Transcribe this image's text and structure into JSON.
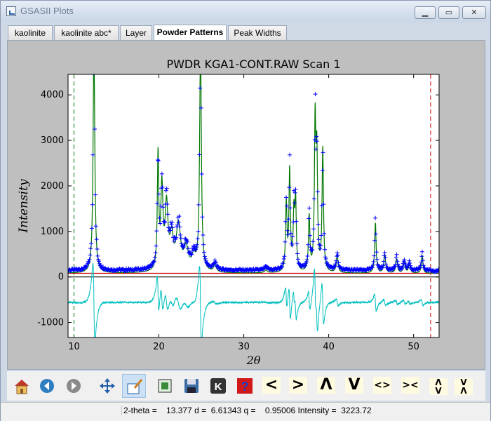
{
  "window": {
    "title": "GSASII Plots"
  },
  "tabs": [
    {
      "label": "kaolinite"
    },
    {
      "label": "kaolinite abc*"
    },
    {
      "label": "Layer"
    },
    {
      "label": "Powder Patterns"
    },
    {
      "label": "Peak Widths"
    }
  ],
  "colors": {
    "observed": "#0000ff",
    "calculated": "#007700",
    "difference": "#00bfbf",
    "background": "#cc0000",
    "limit_left": "#007700",
    "limit_right": "#cc0000"
  },
  "chart_data": {
    "type": "line",
    "title": "PWDR KGA1-CONT.RAW Scan 1",
    "xlabel": "2θ",
    "ylabel": "Intensity",
    "xlim": [
      9.3,
      53
    ],
    "ylim": [
      -1330,
      4450
    ],
    "xticks": [
      10,
      20,
      30,
      40,
      50
    ],
    "yticks": [
      -1000,
      0,
      1000,
      2000,
      3000,
      4000
    ],
    "limits": [
      10,
      52
    ],
    "background_level": 80,
    "difference_offset": -560,
    "peaks": [
      {
        "x": 12.35,
        "h": 5000,
        "w": 0.12
      },
      {
        "x": 19.9,
        "h": 2500,
        "w": 0.1
      },
      {
        "x": 20.35,
        "h": 1800,
        "w": 0.15
      },
      {
        "x": 20.9,
        "h": 1400,
        "w": 0.2
      },
      {
        "x": 21.5,
        "h": 700,
        "w": 0.25
      },
      {
        "x": 22.3,
        "h": 1000,
        "w": 0.3
      },
      {
        "x": 23.2,
        "h": 500,
        "w": 0.3
      },
      {
        "x": 24.1,
        "h": 300,
        "w": 0.3
      },
      {
        "x": 24.9,
        "h": 5000,
        "w": 0.12
      },
      {
        "x": 26.6,
        "h": 150,
        "w": 0.2
      },
      {
        "x": 32.6,
        "h": 60,
        "w": 0.2
      },
      {
        "x": 35.0,
        "h": 1500,
        "w": 0.1
      },
      {
        "x": 35.4,
        "h": 2200,
        "w": 0.1
      },
      {
        "x": 35.9,
        "h": 1200,
        "w": 0.1
      },
      {
        "x": 36.1,
        "h": 1500,
        "w": 0.1
      },
      {
        "x": 37.7,
        "h": 1200,
        "w": 0.1
      },
      {
        "x": 38.4,
        "h": 3200,
        "w": 0.1
      },
      {
        "x": 38.6,
        "h": 2400,
        "w": 0.1
      },
      {
        "x": 39.3,
        "h": 2700,
        "w": 0.1
      },
      {
        "x": 41.0,
        "h": 400,
        "w": 0.12
      },
      {
        "x": 45.5,
        "h": 1100,
        "w": 0.1
      },
      {
        "x": 46.6,
        "h": 400,
        "w": 0.12
      },
      {
        "x": 48.0,
        "h": 300,
        "w": 0.12
      },
      {
        "x": 48.9,
        "h": 250,
        "w": 0.12
      },
      {
        "x": 49.5,
        "h": 200,
        "w": 0.12
      },
      {
        "x": 51.0,
        "h": 400,
        "w": 0.1
      }
    ]
  },
  "toolbar": [
    {
      "name": "home-icon"
    },
    {
      "name": "back-arrow-icon"
    },
    {
      "name": "forward-arrow-icon"
    },
    {
      "name": "pan-icon"
    },
    {
      "name": "zoom-rect-icon"
    },
    {
      "name": "configure-subplots-icon"
    },
    {
      "name": "save-icon"
    },
    {
      "name": "key-icon"
    },
    {
      "name": "help-icon"
    },
    {
      "name": "shift-left-icon",
      "glyph": "<"
    },
    {
      "name": "shift-right-icon",
      "glyph": ">"
    },
    {
      "name": "shift-up-icon",
      "glyph": "Λ"
    },
    {
      "name": "shift-down-icon",
      "glyph": "V"
    },
    {
      "name": "expand-x-icon",
      "glyph": "<>"
    },
    {
      "name": "shrink-x-icon",
      "glyph": "><"
    },
    {
      "name": "expand-y-icon",
      "glyph": "Λ\nV"
    },
    {
      "name": "shrink-y-icon",
      "glyph": "V\nΛ"
    }
  ],
  "status": {
    "text": "2-theta =    13.377 d =  6.61343 q =    0.95006 Intensity =  3223.72"
  }
}
